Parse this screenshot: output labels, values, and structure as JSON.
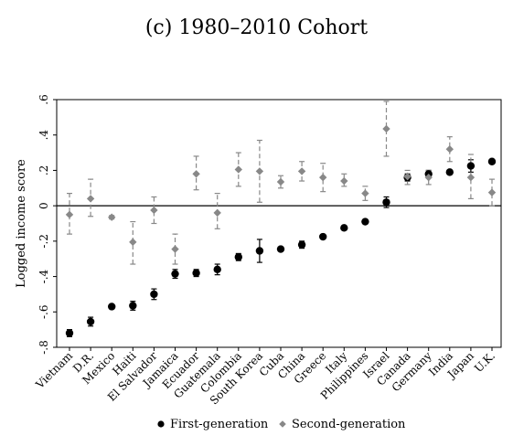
{
  "chart_data": {
    "type": "scatter",
    "title": "(c) 1980–2010 Cohort",
    "xlabel": "",
    "ylabel": "Logged income score",
    "ylim": [
      -0.8,
      0.6
    ],
    "yticks": [
      -0.8,
      -0.6,
      -0.4,
      -0.2,
      0,
      0.2,
      0.4,
      0.6
    ],
    "ytick_labels": [
      "-.8",
      "-.6",
      "-.4",
      "-.2",
      "0",
      ".2",
      ".4",
      ".6"
    ],
    "categories": [
      "Vietnam",
      "D.R.",
      "Mexico",
      "Haiti",
      "El Salvador",
      "Jamaica",
      "Ecuador",
      "Guatemala",
      "Colombia",
      "South Korea",
      "Cuba",
      "China",
      "Greece",
      "Italy",
      "Philippines",
      "Israel",
      "Canada",
      "Germany",
      "India",
      "Japan",
      "U.K."
    ],
    "grid": false,
    "reference_line_y": 0,
    "legend_position": "bottom",
    "series": [
      {
        "name": "First-generation",
        "marker": "circle",
        "color": "#000000",
        "values": [
          -0.72,
          -0.655,
          -0.57,
          -0.565,
          -0.5,
          -0.385,
          -0.38,
          -0.36,
          -0.29,
          -0.255,
          -0.245,
          -0.22,
          -0.175,
          -0.125,
          -0.09,
          0.02,
          0.16,
          0.18,
          0.19,
          0.225,
          0.25
        ],
        "err_low": [
          -0.74,
          -0.68,
          -0.58,
          -0.59,
          -0.53,
          -0.41,
          -0.4,
          -0.39,
          -0.31,
          -0.32,
          -0.255,
          -0.24,
          -0.185,
          -0.135,
          -0.1,
          -0.01,
          0.14,
          0.16,
          0.18,
          0.19,
          0.24
        ],
        "err_high": [
          -0.7,
          -0.63,
          -0.56,
          -0.54,
          -0.47,
          -0.36,
          -0.36,
          -0.33,
          -0.27,
          -0.19,
          -0.235,
          -0.2,
          -0.165,
          -0.115,
          -0.08,
          0.05,
          0.18,
          0.2,
          0.2,
          0.26,
          0.26
        ]
      },
      {
        "name": "Second-generation",
        "marker": "diamond",
        "color": "#888888",
        "values": [
          -0.05,
          0.04,
          -0.065,
          -0.205,
          -0.025,
          -0.245,
          0.18,
          -0.04,
          0.205,
          0.195,
          0.135,
          0.195,
          0.16,
          0.14,
          0.07,
          0.435,
          0.165,
          0.16,
          0.32,
          0.16,
          0.075
        ],
        "err_low": [
          -0.16,
          -0.06,
          -0.075,
          -0.33,
          -0.1,
          -0.33,
          0.09,
          -0.13,
          0.11,
          0.02,
          0.1,
          0.14,
          0.08,
          0.11,
          0.03,
          0.28,
          0.12,
          0.12,
          0.25,
          0.04,
          0.0
        ],
        "err_high": [
          0.07,
          0.15,
          -0.055,
          -0.09,
          0.05,
          -0.16,
          0.28,
          0.07,
          0.3,
          0.37,
          0.17,
          0.25,
          0.24,
          0.18,
          0.11,
          0.59,
          0.2,
          0.2,
          0.39,
          0.29,
          0.15
        ]
      }
    ]
  }
}
